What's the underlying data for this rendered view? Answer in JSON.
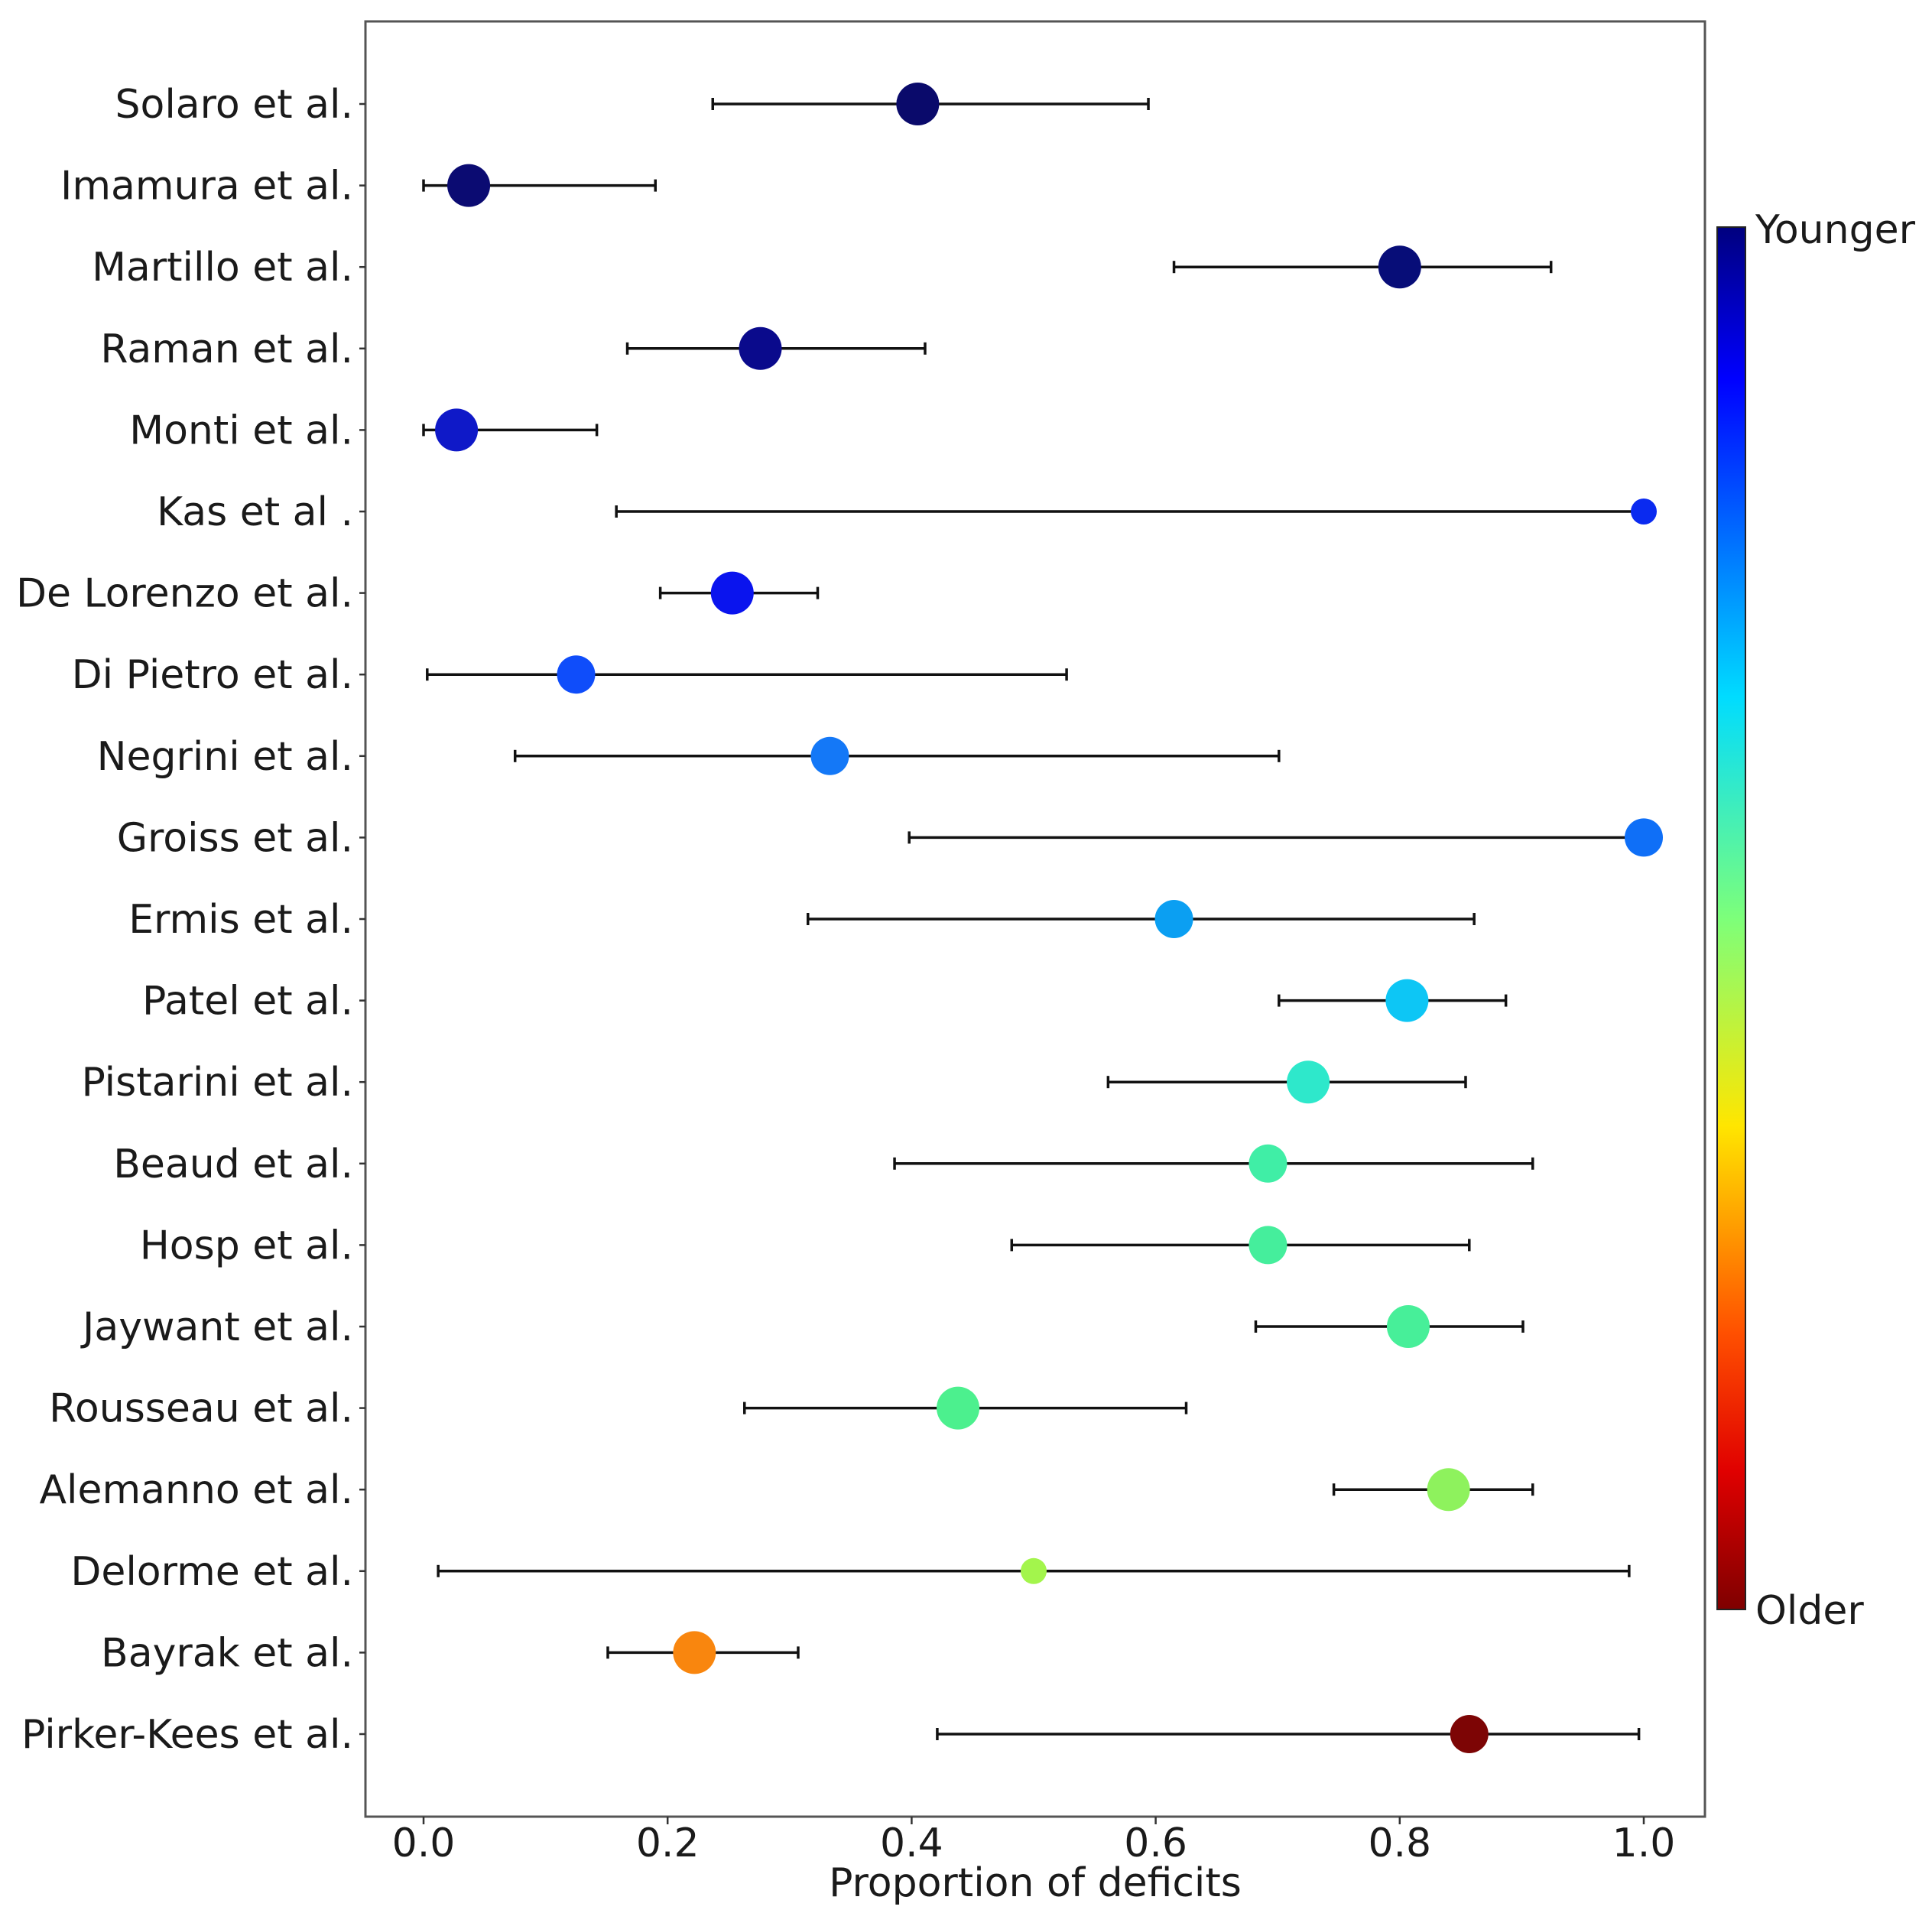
{
  "chart_data": {
    "type": "scatter",
    "subtype": "forest-plot-with-error-bars",
    "xlabel": "Proportion of deficits",
    "ylabel": "",
    "xlim": [
      -0.05,
      1.05
    ],
    "xticks": [
      "0.0",
      "0.2",
      "0.4",
      "0.6",
      "0.8",
      "1.0"
    ],
    "xtick_values": [
      0.0,
      0.2,
      0.4,
      0.6,
      0.8,
      1.0
    ],
    "grid": false,
    "colorbar": {
      "top_label": "Younger",
      "bottom_label": "Older",
      "colormap": "jet (reversed: top dark blue, bottom dark red)"
    },
    "studies": [
      {
        "label": "Solaro et al.",
        "value": 0.405,
        "ci": [
          0.237,
          0.594
        ],
        "color": "#0a0a6b",
        "size": "large"
      },
      {
        "label": "Imamura et al.",
        "value": 0.037,
        "ci": [
          0.0,
          0.19
        ],
        "color": "#0b0b72",
        "size": "large"
      },
      {
        "label": "Martillo et al.",
        "value": 0.8,
        "ci": [
          0.615,
          0.924
        ],
        "color": "#070d78",
        "size": "large"
      },
      {
        "label": "Raman et al.",
        "value": 0.276,
        "ci": [
          0.167,
          0.411
        ],
        "color": "#0a0a8c",
        "size": "large"
      },
      {
        "label": "Monti et al.",
        "value": 0.027,
        "ci": [
          0.0,
          0.142
        ],
        "color": "#0f19c8",
        "size": "large"
      },
      {
        "label": "Kas et al .",
        "value": 1.0,
        "ci": [
          0.158,
          1.0
        ],
        "color": "#0a2af0",
        "size": "small"
      },
      {
        "label": "De Lorenzo et al.",
        "value": 0.253,
        "ci": [
          0.194,
          0.323
        ],
        "color": "#0a14ee",
        "size": "large"
      },
      {
        "label": "Di Pietro et al.",
        "value": 0.125,
        "ci": [
          0.003,
          0.527
        ],
        "color": "#0f4dfa",
        "size": "medium"
      },
      {
        "label": "Negrini et al.",
        "value": 0.333,
        "ci": [
          0.075,
          0.701
        ],
        "color": "#1478f7",
        "size": "medium"
      },
      {
        "label": "Groiss et al.",
        "value": 1.0,
        "ci": [
          0.398,
          1.0
        ],
        "color": "#0f6ff7",
        "size": "medium"
      },
      {
        "label": "Ermis et al.",
        "value": 0.615,
        "ci": [
          0.315,
          0.861
        ],
        "color": "#0b9ff2",
        "size": "medium"
      },
      {
        "label": "Patel et al.",
        "value": 0.806,
        "ci": [
          0.701,
          0.887
        ],
        "color": "#0dc6f5",
        "size": "large"
      },
      {
        "label": "Pistarini et al.",
        "value": 0.725,
        "ci": [
          0.561,
          0.854
        ],
        "color": "#2ee8cb",
        "size": "large"
      },
      {
        "label": "Beaud et al.",
        "value": 0.692,
        "ci": [
          0.386,
          0.909
        ],
        "color": "#40eea6",
        "size": "medium"
      },
      {
        "label": "Hosp et al.",
        "value": 0.692,
        "ci": [
          0.482,
          0.857
        ],
        "color": "#45ee9c",
        "size": "medium"
      },
      {
        "label": "Jaywant et al.",
        "value": 0.807,
        "ci": [
          0.682,
          0.901
        ],
        "color": "#47ef99",
        "size": "large"
      },
      {
        "label": "Rousseau et al.",
        "value": 0.438,
        "ci": [
          0.263,
          0.625
        ],
        "color": "#4cf08e",
        "size": "large"
      },
      {
        "label": "Alemanno et al.",
        "value": 0.84,
        "ci": [
          0.746,
          0.909
        ],
        "color": "#8ef25d",
        "size": "large"
      },
      {
        "label": "Delorme et al.",
        "value": 0.5,
        "ci": [
          0.012,
          0.988
        ],
        "color": "#a3f54c",
        "size": "small"
      },
      {
        "label": "Bayrak et al.",
        "value": 0.222,
        "ci": [
          0.151,
          0.307
        ],
        "color": "#f9860e",
        "size": "large"
      },
      {
        "label": "Pirker-Kees et al.",
        "value": 0.857,
        "ci": [
          0.421,
          0.996
        ],
        "color": "#7d0505",
        "size": "medium"
      }
    ]
  }
}
